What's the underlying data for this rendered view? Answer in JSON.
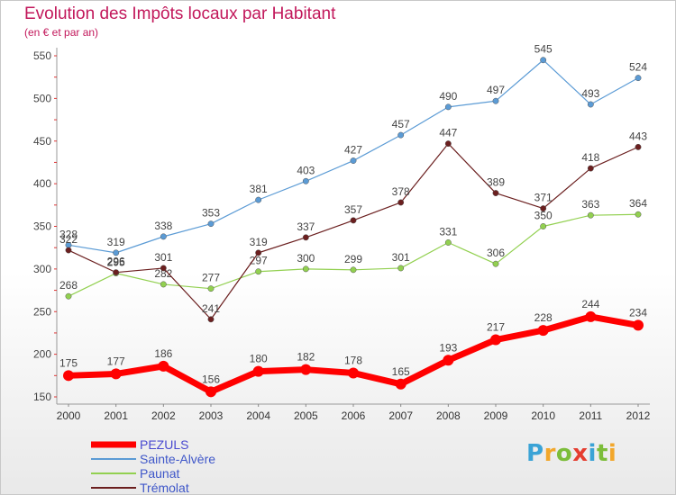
{
  "title": "Evolution des Impôts locaux par Habitant",
  "subtitle": "(en € et par an)",
  "logo": "Proxiti",
  "chart_data": {
    "type": "line",
    "title": "Evolution des Impôts locaux par Habitant",
    "subtitle": "(en € et par an)",
    "xlabel": "",
    "ylabel": "",
    "x": [
      "2000",
      "2001",
      "2002",
      "2003",
      "2004",
      "2005",
      "2006",
      "2007",
      "2008",
      "2009",
      "2010",
      "2011",
      "2012"
    ],
    "ylim": [
      150,
      550
    ],
    "yticks": [
      150,
      200,
      250,
      300,
      350,
      400,
      450,
      500,
      550
    ],
    "grid": false,
    "legend_position": "bottom-left",
    "series": [
      {
        "name": "PEZULS",
        "color": "#ff0000",
        "values": [
          175,
          177,
          186,
          156,
          180,
          182,
          178,
          165,
          193,
          217,
          228,
          244,
          234
        ]
      },
      {
        "name": "Sainte-Alvère",
        "color": "#5b9bd5",
        "values": [
          328,
          319,
          338,
          353,
          381,
          403,
          427,
          457,
          490,
          497,
          545,
          493,
          524
        ]
      },
      {
        "name": "Paunat",
        "color": "#92d050",
        "values": [
          268,
          295,
          282,
          277,
          297,
          300,
          299,
          301,
          331,
          306,
          350,
          363,
          364
        ]
      },
      {
        "name": "Trémolat",
        "color": "#6b1f1f",
        "values": [
          322,
          296,
          301,
          241,
          319,
          337,
          357,
          378,
          447,
          389,
          371,
          418,
          443
        ]
      }
    ]
  }
}
